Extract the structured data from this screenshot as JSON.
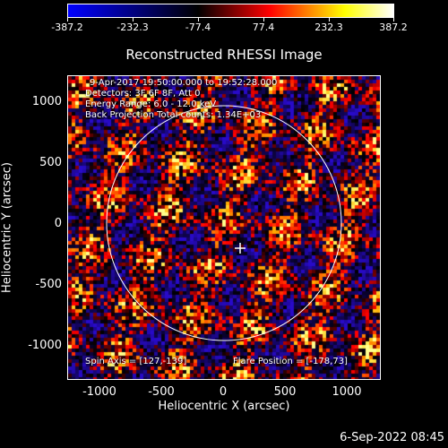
{
  "colorbar": {
    "labels": [
      "-387.2",
      "-232.3",
      "-77.4",
      "77.4",
      "232.3",
      "387.2"
    ],
    "gradient": [
      "#0000ff",
      "#000000",
      "#ff0000",
      "#ffff00",
      "#ffffff"
    ]
  },
  "title": "Reconstructed RHESSI Image",
  "info": {
    "line1": "9-Apr-2017 19:50:00.000 to 19:52:28.000",
    "line2": "Detectors: 3F 6F 8F, Att 0",
    "line3": "Energy Range: 6.0 - 12.0 keV",
    "line4": "Back Projection    Total counts: 1.34E+03",
    "spin_axis": "Spin Axis = [127,-139]",
    "flare_position": "Flare Position = [-178,73]"
  },
  "axes": {
    "y_ticks": [
      "1000",
      "500",
      "0",
      "-500",
      "-1000"
    ],
    "x_ticks": [
      "-1000",
      "-500",
      "0",
      "500",
      "1000"
    ],
    "xlabel": "Heliocentric X (arcsec)",
    "ylabel": "Heliocentric Y (arcsec)"
  },
  "timestamp": "6-Sep-2022 08:45"
}
